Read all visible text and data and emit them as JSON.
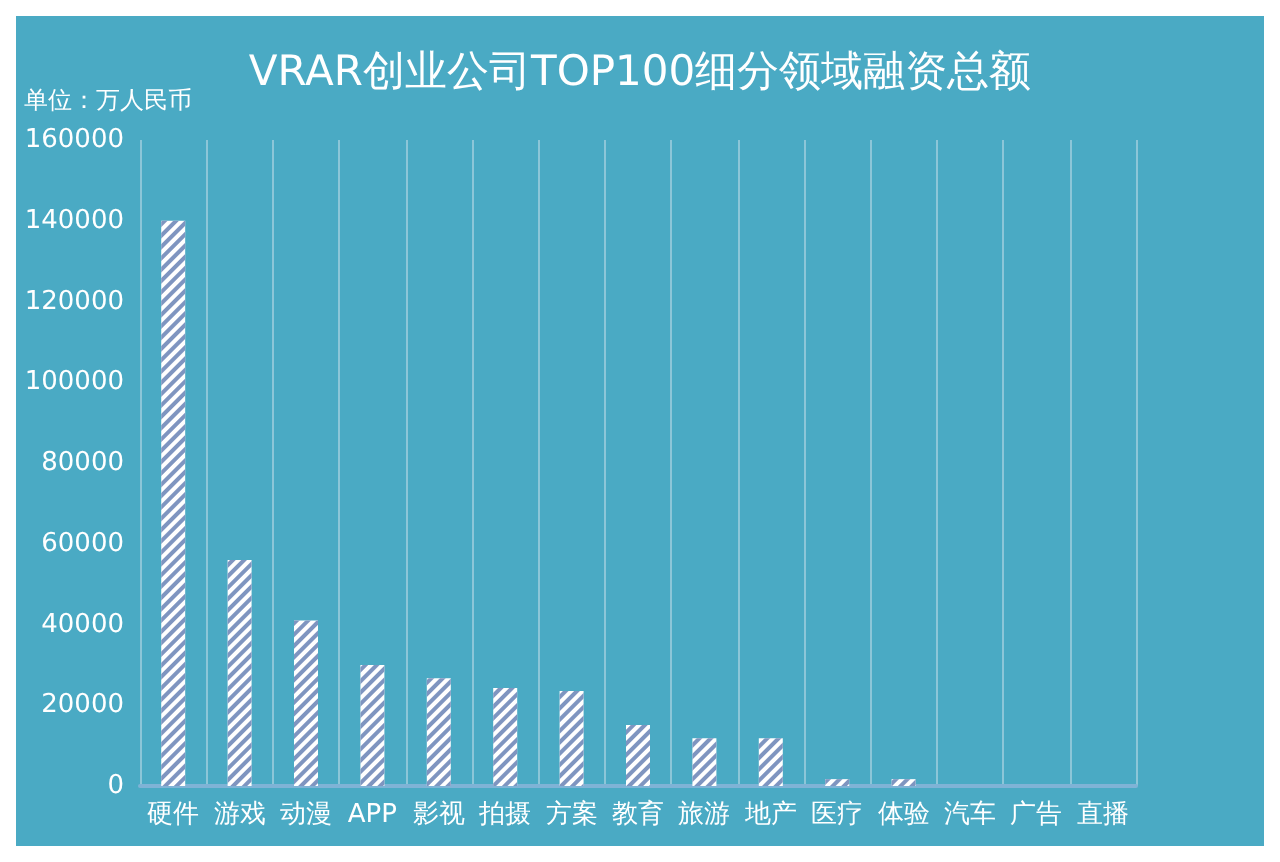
{
  "chart_data": {
    "type": "bar",
    "title": "VRAR创业公司TOP100细分领域融资总额",
    "ylabel": "单位：万人民币",
    "categories": [
      "硬件",
      "游戏",
      "动漫",
      "APP",
      "影视",
      "拍摄",
      "方案",
      "教育",
      "旅游",
      "地产",
      "医疗",
      "体验",
      "汽车",
      "广告",
      "直播"
    ],
    "values": [
      140000,
      56000,
      41000,
      30000,
      26700,
      24300,
      23500,
      15100,
      11800,
      11800,
      1700,
      1700,
      0,
      0,
      0
    ],
    "color": "#ffffff",
    "ylim": [
      0,
      160000
    ],
    "yticks": [
      0,
      20000,
      40000,
      60000,
      80000,
      100000,
      120000,
      140000,
      160000
    ],
    "grid": "x"
  }
}
